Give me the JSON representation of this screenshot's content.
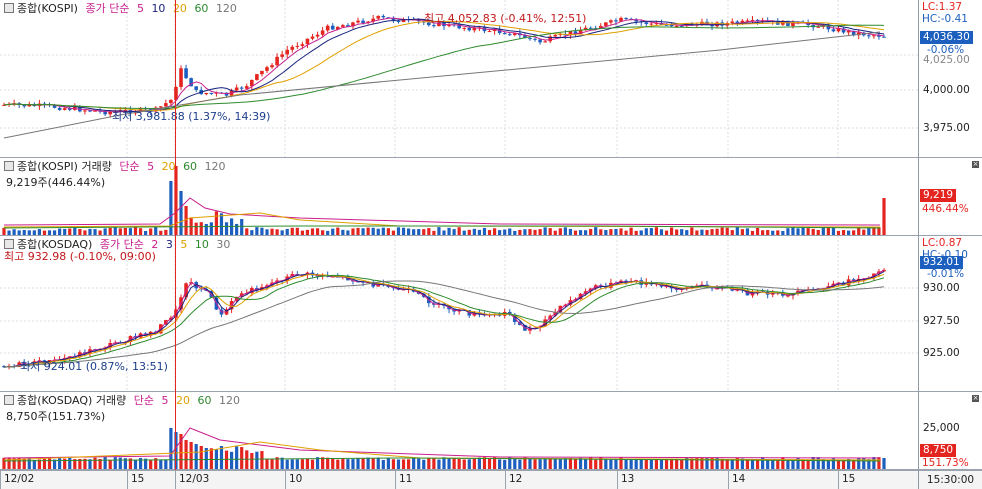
{
  "panels": {
    "kospi": {
      "legend": {
        "name": "종합(KOSPI)",
        "type": "종가 단순",
        "ma": [
          "5",
          "10",
          "20",
          "60",
          "120"
        ]
      },
      "max_note": "최고 4,052.83 (-0.41%, 12:51)",
      "min_note": "최저 3,981.88 (1.37%, 14:39)",
      "axis": {
        "lc": "LC:1.37",
        "hc": "HC:-0.41",
        "current": "4,036.30",
        "change": "-0.06%",
        "ticks": [
          "4,025.00",
          "4,000.00",
          "3,975.00"
        ]
      }
    },
    "kospi_volume": {
      "legend": {
        "name": "종합(KOSPI) 거래량",
        "type": "단순",
        "ma": [
          "5",
          "20",
          "60",
          "120"
        ]
      },
      "sub": "9,219주(446.44%)",
      "axis": {
        "current": "9,219",
        "pct": "446.44%"
      }
    },
    "kosdaq": {
      "legend": {
        "name": "종합(KOSDAQ)",
        "type": "종가 단순",
        "ma": [
          "2",
          "3",
          "5",
          "10",
          "30"
        ]
      },
      "max_note": "최고 932.98 (-0.10%, 09:00)",
      "min_note": "최저 924.01 (0.87%, 13:51)",
      "axis": {
        "lc": "LC:0.87",
        "hc": "HC:-0.10",
        "current": "932.01",
        "change": "-0.01%",
        "ticks": [
          "930.00",
          "927.50",
          "925.00"
        ]
      }
    },
    "kosdaq_volume": {
      "legend": {
        "name": "종합(KOSDAQ) 거래량",
        "type": "단순",
        "ma": [
          "5",
          "20",
          "60",
          "120"
        ]
      },
      "sub": "8,750주(151.73%)",
      "axis": {
        "tick": "25,000",
        "current": "8,750",
        "pct": "151.73%"
      }
    }
  },
  "time_axis": {
    "labels": [
      "12/02",
      "15",
      "12/03",
      "10",
      "11",
      "12",
      "13",
      "14",
      "15"
    ],
    "current_time": "15:30:00"
  },
  "colors": {
    "up": "#e4241f",
    "down": "#1d5fbf",
    "ma5": "#c81e8c",
    "ma10": "#1a237e",
    "ma20": "#e0a000",
    "ma60": "#2e8b2e",
    "ma120": "#777777",
    "crosshair": "#e4241f"
  }
}
